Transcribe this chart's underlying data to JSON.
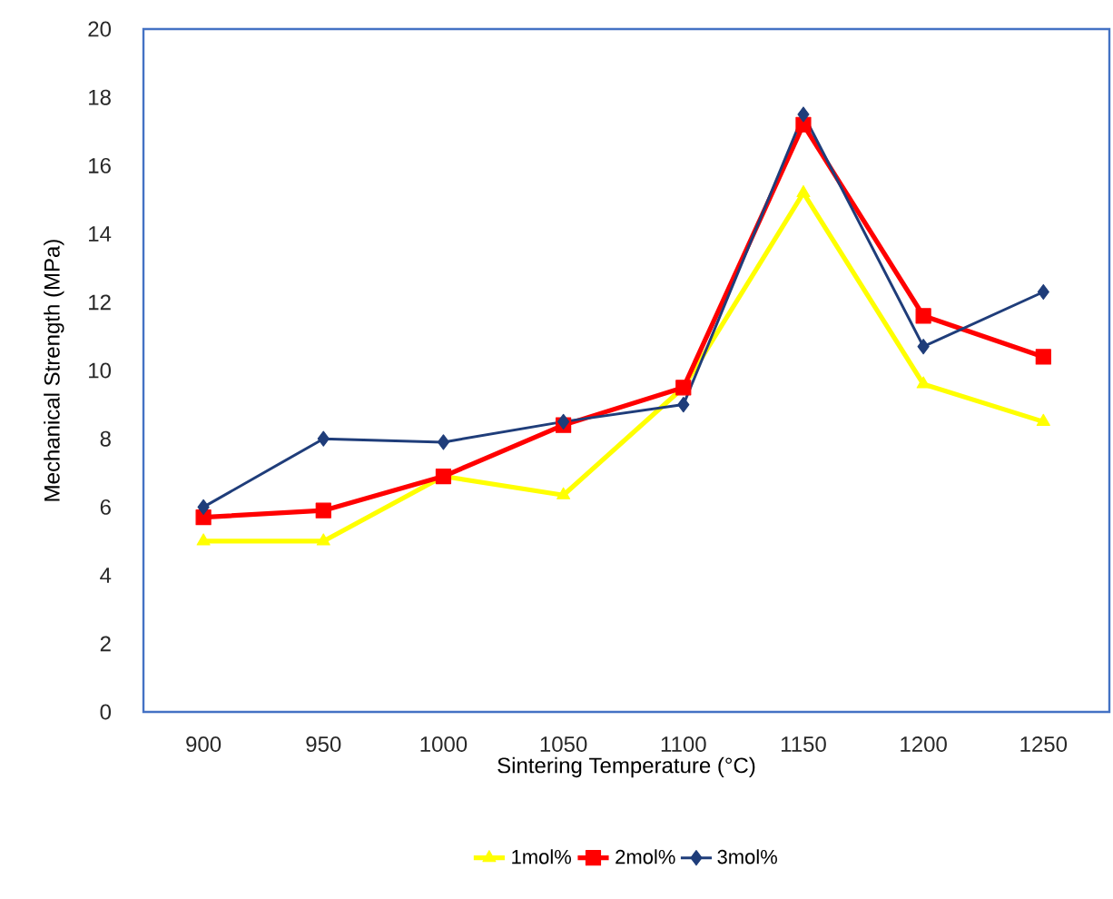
{
  "chart_data": {
    "type": "line",
    "xlabel": "Sintering Temperature (°C)",
    "ylabel": "Mechanical Strength (MPa)",
    "categories": [
      "900",
      "950",
      "1000",
      "1050",
      "1100",
      "1150",
      "1200",
      "1250"
    ],
    "ylim": [
      0,
      20
    ],
    "yticks": [
      0,
      2,
      4,
      6,
      8,
      10,
      12,
      14,
      16,
      18,
      20
    ],
    "grid": false,
    "legend": "bottom",
    "series": [
      {
        "name": "1mol%",
        "color": "#ffff00",
        "marker": "triangle",
        "values": [
          5.0,
          5.0,
          6.9,
          6.35,
          9.5,
          15.2,
          9.6,
          8.5
        ]
      },
      {
        "name": "2mol%",
        "color": "#ff0000",
        "marker": "square",
        "values": [
          5.7,
          5.9,
          6.9,
          8.4,
          9.5,
          17.2,
          11.6,
          10.4
        ]
      },
      {
        "name": "3mol%",
        "color": "#1f3d7a",
        "marker": "diamond",
        "values": [
          6.0,
          8.0,
          7.9,
          8.5,
          9.0,
          17.5,
          10.7,
          12.3
        ]
      }
    ]
  }
}
